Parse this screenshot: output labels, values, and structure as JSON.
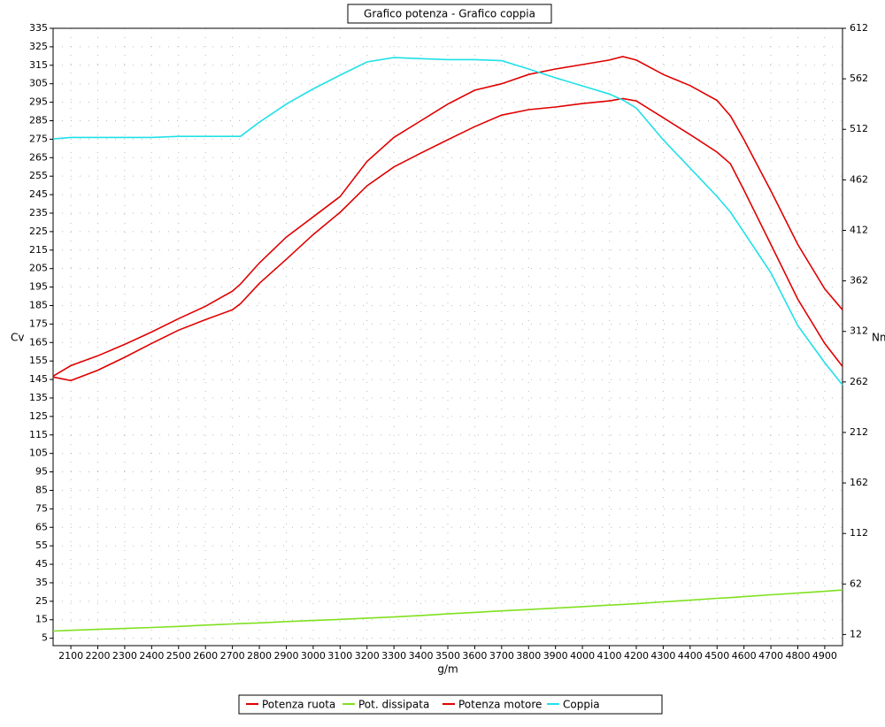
{
  "chart_data": {
    "type": "line",
    "title": "Grafico potenza - Grafico coppia",
    "x_label": "g/m",
    "y_label": "Cv",
    "y2_label": "Nm",
    "x": [
      2034,
      2100,
      2200,
      2300,
      2400,
      2500,
      2600,
      2700,
      2730,
      2800,
      2900,
      3000,
      3100,
      3200,
      3300,
      3400,
      3500,
      3600,
      3700,
      3800,
      3900,
      4000,
      4100,
      4150,
      4200,
      4300,
      4400,
      4500,
      4550,
      4600,
      4700,
      4800,
      4900,
      4966
    ],
    "series": [
      {
        "name": "Potenza ruota",
        "color": "#e00000",
        "values": [
          146.3,
          144.4,
          150,
          157,
          164.5,
          171.7,
          177.4,
          182.7,
          186,
          197,
          210,
          223.4,
          235.4,
          249.8,
          260,
          267.5,
          274.7,
          281.8,
          288,
          291,
          292.4,
          294.3,
          295.7,
          297,
          295.7,
          286.6,
          277.5,
          268,
          261.7,
          247.4,
          218,
          188.4,
          164.5,
          152
        ]
      },
      {
        "name": "Pot. dissipata",
        "color": "#80e020",
        "values": [
          8.9,
          9.3,
          9.8,
          10.3,
          10.8,
          11.4,
          12.1,
          12.7,
          12.9,
          13.3,
          14,
          14.6,
          15.2,
          15.9,
          16.5,
          17.3,
          18.2,
          19,
          19.8,
          20.5,
          21.3,
          22.1,
          22.9,
          23.3,
          23.7,
          24.7,
          25.6,
          26.6,
          27,
          27.5,
          28.5,
          29.4,
          30.4,
          31.1
        ]
      },
      {
        "name": "Potenza motore",
        "color": "#e00000",
        "values": [
          146.8,
          152.5,
          157.8,
          164,
          170.7,
          177.9,
          184.6,
          192.8,
          196.6,
          208,
          222,
          233,
          244,
          263,
          276,
          285,
          294,
          301.5,
          305,
          310,
          313,
          315.4,
          317.8,
          319.7,
          317.8,
          310,
          304,
          296,
          287.6,
          274.7,
          247,
          218,
          194,
          182.7
        ]
      },
      {
        "name": "Coppia",
        "color": "#20e0e8",
        "axis": "y2",
        "values": [
          502.5,
          504,
          504,
          504,
          504,
          505,
          505,
          505,
          505,
          519,
          537,
          552,
          565.6,
          578.7,
          583,
          582,
          581,
          581,
          580,
          571.7,
          563,
          555,
          547,
          541,
          533,
          501.6,
          473.6,
          445.6,
          430,
          410,
          370,
          317.7,
          281,
          259
        ]
      }
    ],
    "xlim": [
      2034,
      4966
    ],
    "xticks": [
      2100,
      2200,
      2300,
      2400,
      2500,
      2600,
      2700,
      2800,
      2900,
      3000,
      3100,
      3200,
      3300,
      3400,
      3500,
      3600,
      3700,
      3800,
      3900,
      4000,
      4100,
      4200,
      4300,
      4400,
      4500,
      4600,
      4700,
      4800,
      4900
    ],
    "ylim": [
      1,
      335
    ],
    "yticks": [
      5,
      15,
      25,
      35,
      45,
      55,
      65,
      75,
      85,
      95,
      105,
      115,
      125,
      135,
      145,
      155,
      165,
      175,
      185,
      195,
      205,
      215,
      225,
      235,
      245,
      255,
      265,
      275,
      285,
      295,
      305,
      315,
      325,
      335
    ],
    "y2lim": [
      1,
      612
    ],
    "y2ticks": [
      12,
      62,
      112,
      162,
      212,
      262,
      312,
      362,
      412,
      462,
      512,
      562,
      612
    ],
    "grid": true,
    "legend": "bottom"
  }
}
